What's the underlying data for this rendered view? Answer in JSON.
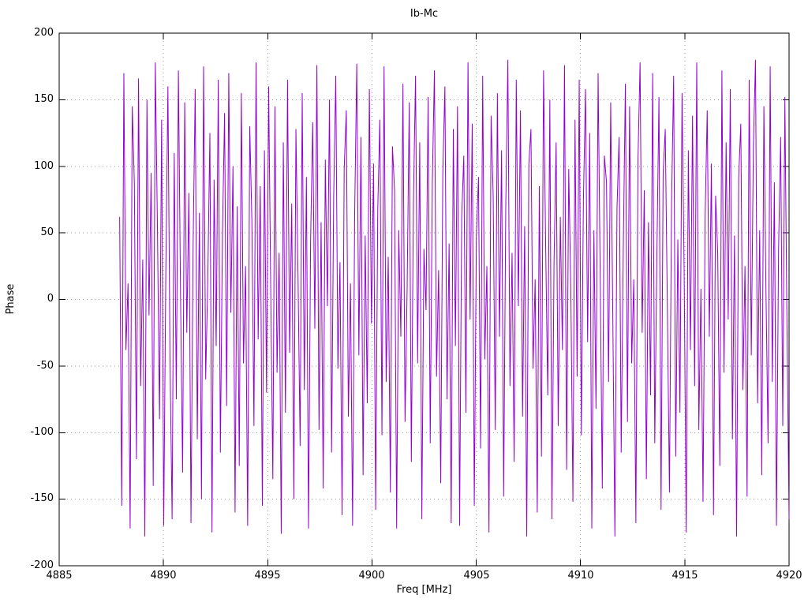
{
  "chart_data": {
    "type": "line",
    "title": "Ib-Mc",
    "xlabel": "Freq [MHz]",
    "ylabel": "Phase",
    "xlim": [
      4885,
      4920
    ],
    "ylim": [
      -200,
      200
    ],
    "x_ticks": [
      4885,
      4890,
      4895,
      4900,
      4905,
      4910,
      4915,
      4920
    ],
    "y_ticks": [
      200,
      150,
      100,
      50,
      0,
      -50,
      -100,
      -150,
      -200
    ],
    "grid": true,
    "legend": "none",
    "line_color": "#9400d3",
    "series": [
      {
        "name": "Ib-Mc",
        "x_start": 4887.9,
        "x_end": 4920.0,
        "phase_values": [
          62,
          -155,
          170,
          -38,
          12,
          -172,
          145,
          88,
          -120,
          166,
          -65,
          30,
          -178,
          150,
          -12,
          95,
          -140,
          178,
          55,
          -90,
          135,
          -170,
          20,
          160,
          -45,
          -165,
          110,
          -75,
          172,
          5,
          -130,
          148,
          -25,
          80,
          -168,
          40,
          158,
          -105,
          65,
          -150,
          175,
          -60,
          15,
          125,
          -175,
          90,
          -35,
          165,
          -115,
          50,
          140,
          -80,
          170,
          -10,
          100,
          -160,
          70,
          -125,
          155,
          -48,
          25,
          -170,
          130,
          60,
          -95,
          178,
          -30,
          85,
          -155,
          112,
          -70,
          160,
          8,
          -135,
          145,
          -55,
          35,
          -176,
          118,
          -85,
          165,
          -40,
          72,
          -150,
          128,
          18,
          -110,
          155,
          -68,
          92,
          -172,
          45,
          133,
          -22,
          176,
          -98,
          58,
          -142,
          105,
          -5,
          150,
          -115,
          78,
          168,
          -52,
          28,
          -162,
          98,
          142,
          -88,
          12,
          -170,
          65,
          177,
          -42,
          122,
          -132,
          48,
          -78,
          158,
          -18,
          102,
          -158,
          68,
          135,
          -102,
          175,
          -62,
          32,
          -145,
          115,
          82,
          -172,
          52,
          -28,
          162,
          -92,
          8,
          148,
          -122,
          73,
          168,
          -48,
          118,
          -165,
          38,
          -8,
          152,
          -108,
          88,
          172,
          -58,
          22,
          -138,
          95,
          160,
          -75,
          42,
          -168,
          128,
          -35,
          145,
          -170,
          62,
          108,
          -85,
          178,
          -15,
          132,
          -155,
          48,
          92,
          -112,
          168,
          -45,
          25,
          -175,
          138,
          78,
          -98,
          155,
          -28,
          112,
          -148,
          70,
          180,
          -65,
          35,
          -122,
          165,
          -5,
          142,
          -88,
          55,
          -178,
          102,
          128,
          -52,
          15,
          -160,
          85,
          -118,
          172,
          42,
          -72,
          150,
          -165,
          28,
          118,
          -95,
          62,
          -38,
          176,
          -128,
          98,
          8,
          -152,
          135,
          -58,
          165,
          -102,
          75,
          158,
          -32,
          125,
          -172,
          52,
          -82,
          170,
          18,
          -142,
          108,
          88,
          -62,
          148,
          -12,
          -178,
          68,
          122,
          -115,
          38,
          162,
          -92,
          145,
          -48,
          15,
          -168,
          105,
          178,
          -25,
          82,
          -135,
          58,
          -72,
          170,
          -108,
          32,
          152,
          -158,
          95,
          128,
          -5,
          -145,
          72,
          168,
          -118,
          45,
          -85,
          155,
          22,
          -175,
          112,
          -38,
          138,
          -65,
          178,
          -98,
          8,
          -152,
          62,
          142,
          -28,
          102,
          -162,
          78,
          35,
          -125,
          172,
          -55,
          118,
          -15,
          158,
          -105,
          48,
          -178,
          92,
          132,
          -68,
          25,
          -148,
          165,
          -42,
          115,
          180,
          -78,
          52,
          -132,
          145,
          5,
          -108,
          175,
          -62,
          88,
          -170,
          38,
          122,
          -95,
          152,
          -18,
          -165
        ]
      }
    ]
  }
}
